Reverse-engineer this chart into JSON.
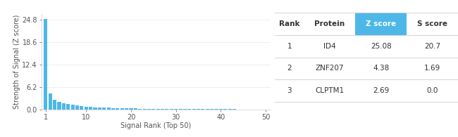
{
  "xlabel": "Signal Rank (Top 50)",
  "ylabel": "Strength of Signal (Z score)",
  "bar_color": "#4db8e8",
  "yticks": [
    0.0,
    6.2,
    12.4,
    18.6,
    24.8
  ],
  "xticks": [
    1,
    10,
    20,
    30,
    40,
    50
  ],
  "xlim": [
    0.0,
    51
  ],
  "ylim": [
    0,
    26.5
  ],
  "z_scores": [
    25.08,
    4.38,
    2.69,
    2.1,
    1.8,
    1.5,
    1.3,
    1.1,
    0.9,
    0.8,
    0.7,
    0.65,
    0.6,
    0.55,
    0.5,
    0.45,
    0.42,
    0.39,
    0.36,
    0.33,
    0.31,
    0.29,
    0.27,
    0.25,
    0.23,
    0.21,
    0.2,
    0.19,
    0.18,
    0.17,
    0.16,
    0.155,
    0.15,
    0.145,
    0.14,
    0.135,
    0.13,
    0.125,
    0.12,
    0.115,
    0.11,
    0.105,
    0.1,
    0.095,
    0.09,
    0.085,
    0.08,
    0.075,
    0.07,
    0.065
  ],
  "headers": [
    "Rank",
    "Protein",
    "Z score",
    "S score"
  ],
  "rows": [
    [
      "1",
      "ID4",
      "25.08",
      "20.7"
    ],
    [
      "2",
      "ZNF207",
      "4.38",
      "1.69"
    ],
    [
      "3",
      "CLPTM1",
      "2.69",
      "0.0"
    ]
  ],
  "highlight_col_bg": "#4db8e8",
  "highlight_col_fg": "#ffffff",
  "header_fg": "#333333",
  "row_fg": "#333333",
  "separator_color": "#cccccc",
  "background_color": "#ffffff",
  "grid_color": "#e8e8e8",
  "axis_label_fontsize": 7,
  "tick_fontsize": 7,
  "table_fontsize": 7.5
}
